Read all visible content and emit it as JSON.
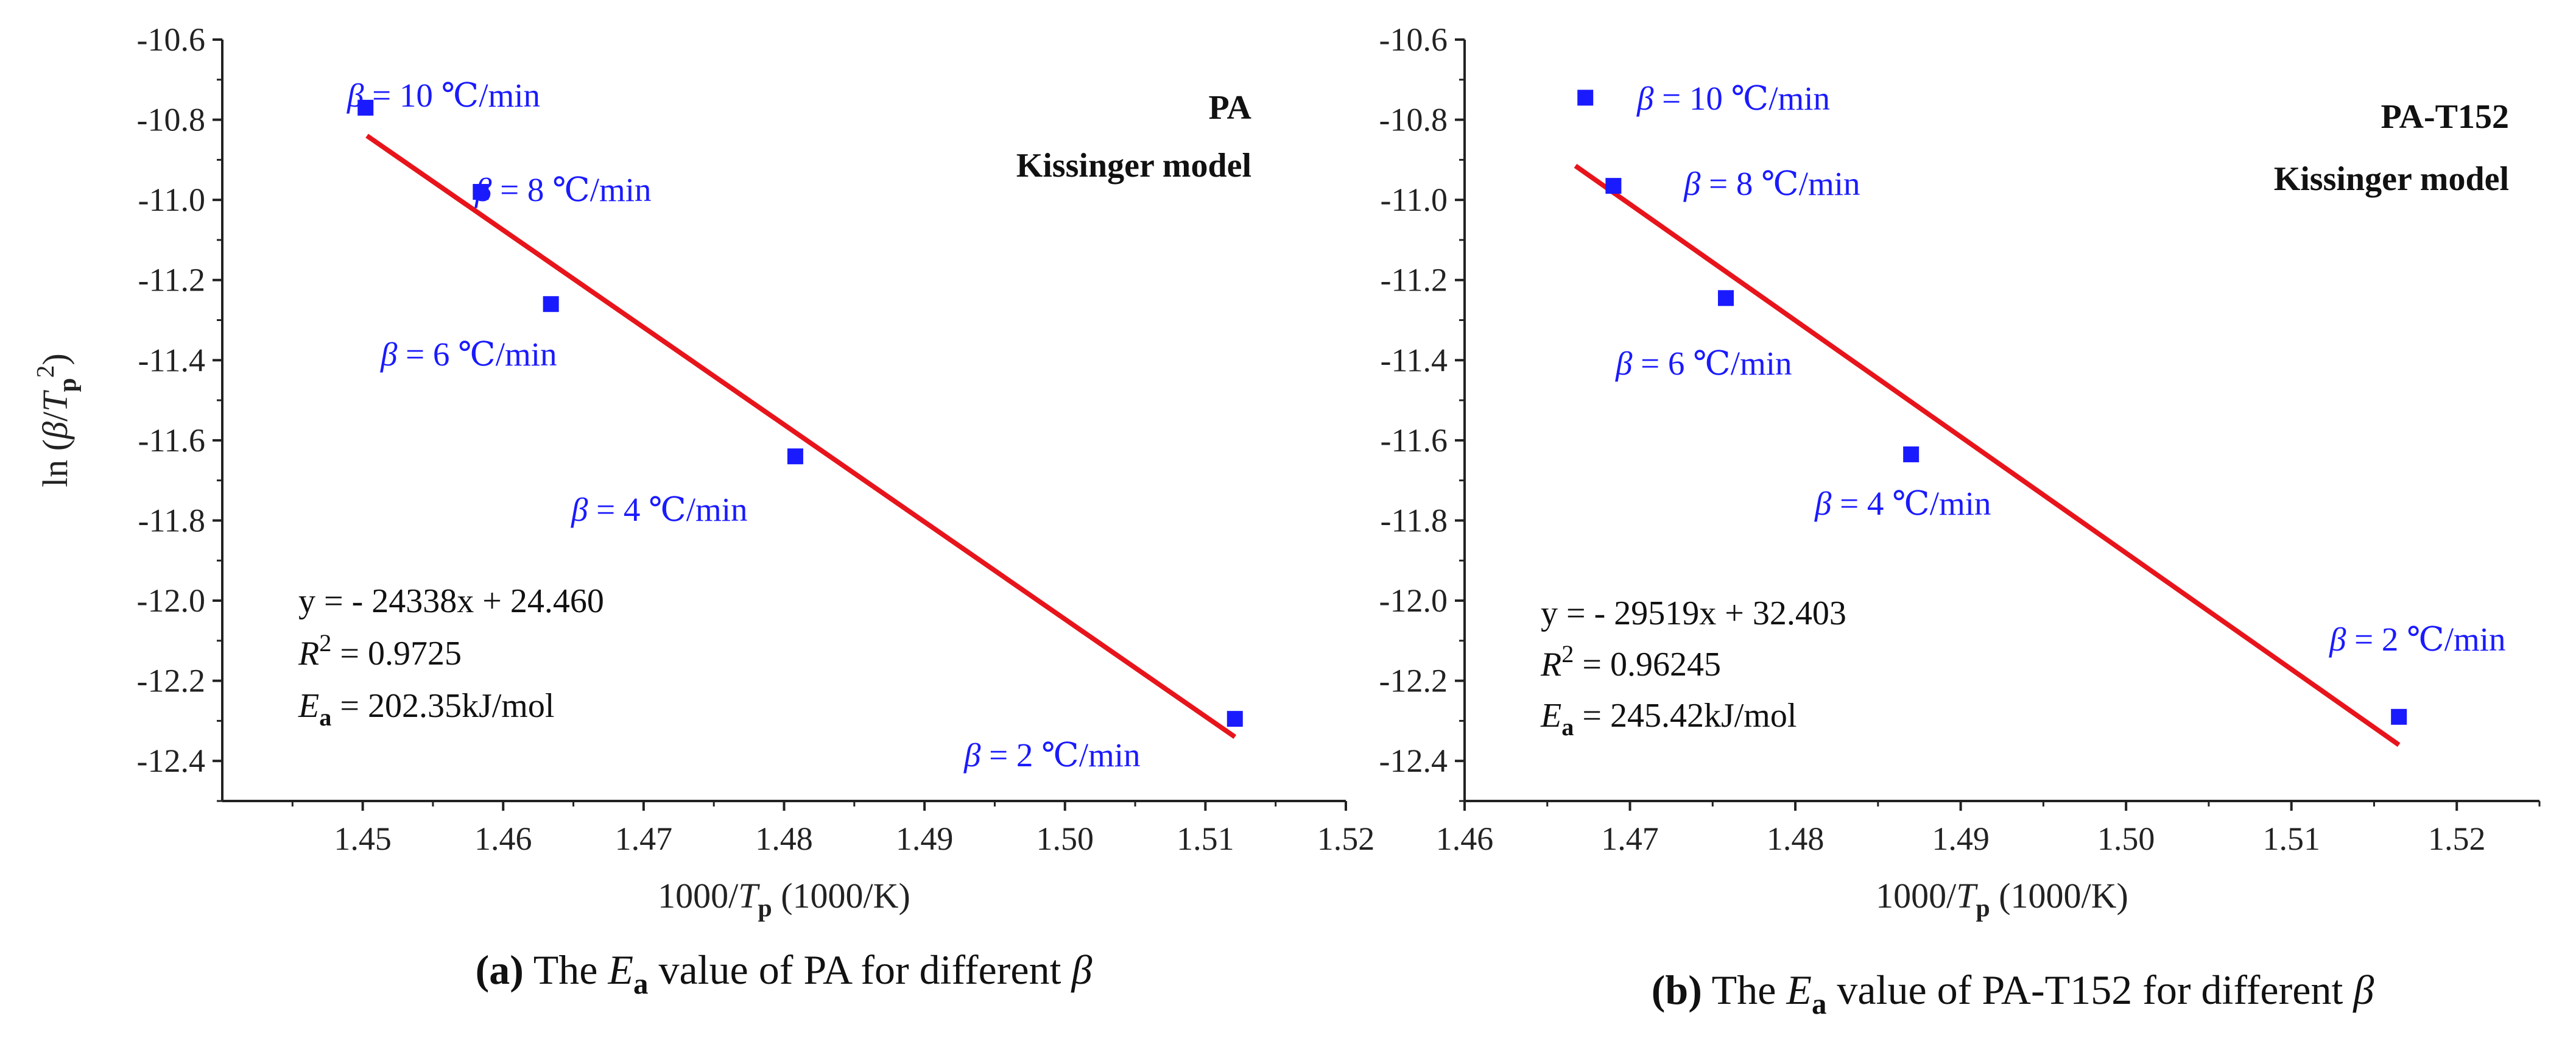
{
  "chart_data": [
    {
      "type": "scatter",
      "panel": "a",
      "caption_prefix": "(a)",
      "caption_text": [
        " The ",
        "E",
        "a",
        " value of PA for different ",
        "β"
      ],
      "title_lines": [
        "PA",
        "Kissinger model"
      ],
      "xlabel": [
        "1000/",
        "T",
        "p",
        " (1000/K)"
      ],
      "ylabel": [
        "ln  (",
        "β",
        "/",
        "T",
        "p",
        "2",
        ")"
      ],
      "xlim": [
        1.44,
        1.52
      ],
      "ylim": [
        -12.5,
        -10.6
      ],
      "xticks": [
        1.45,
        1.46,
        1.47,
        1.48,
        1.49,
        1.5,
        1.51,
        1.52
      ],
      "xtick_labels": [
        "1.45",
        "1.46",
        "1.47",
        "1.48",
        "1.49",
        "1.50",
        "1.51",
        "1.52"
      ],
      "yticks": [
        -10.6,
        -10.8,
        -11.0,
        -11.2,
        -11.4,
        -11.6,
        -11.8,
        -12.0,
        -12.2,
        -12.4
      ],
      "ytick_labels": [
        "-10.6",
        "-10.8",
        "-11.0",
        "-11.2",
        "-11.4",
        "-11.6",
        "-11.8",
        "-12.0",
        "-12.2",
        "-12.4"
      ],
      "points": [
        {
          "x": 1.4502,
          "y": -10.77,
          "beta": "10",
          "label": [
            "β",
            " = 10 ℃/min"
          ],
          "label_anchor": "right-up"
        },
        {
          "x": 1.4584,
          "y": -10.98,
          "beta": "8",
          "label": [
            "β",
            " = 8 ℃/min"
          ],
          "label_anchor": "right"
        },
        {
          "x": 1.4634,
          "y": -11.26,
          "beta": "6",
          "label": [
            "β",
            " = 6 ℃/min"
          ],
          "label_anchor": "below-left"
        },
        {
          "x": 1.4808,
          "y": -11.64,
          "beta": "4",
          "label": [
            "β",
            " = 4 ℃/min"
          ],
          "label_anchor": "below-left"
        },
        {
          "x": 1.5121,
          "y": -12.295,
          "beta": "2",
          "label": [
            "β",
            " = 2 ℃/min"
          ],
          "label_anchor": "below-left"
        }
      ],
      "fit_line": {
        "x": [
          1.4503,
          1.5121
        ],
        "y": [
          -10.84,
          -12.34
        ]
      },
      "equation": [
        "y =  - 24338x + 24.460"
      ],
      "r2": [
        "R",
        "2",
        " = 0.9725"
      ],
      "ea": [
        "E",
        "a",
        " = 202.35kJ/mol"
      ],
      "marker_color": "#1a1aff",
      "line_color": "#e8141b"
    },
    {
      "type": "scatter",
      "panel": "b",
      "caption_prefix": "(b)",
      "caption_text": [
        " The ",
        "E",
        "a",
        " value of PA-T152 for different ",
        "β"
      ],
      "title_lines": [
        "PA-T152",
        "Kissinger model"
      ],
      "xlabel": [
        "1000/",
        "T",
        "p",
        " (1000/K)"
      ],
      "ylabel": [],
      "xlim": [
        1.46,
        1.525
      ],
      "ylim": [
        -12.5,
        -10.6
      ],
      "xticks": [
        1.46,
        1.47,
        1.48,
        1.49,
        1.5,
        1.51,
        1.52
      ],
      "xtick_labels": [
        "1.46",
        "1.47",
        "1.48",
        "1.49",
        "1.50",
        "1.51",
        "1.52"
      ],
      "yticks": [
        -10.6,
        -10.8,
        -11.0,
        -11.2,
        -11.4,
        -11.6,
        -11.8,
        -12.0,
        -12.2,
        -12.4
      ],
      "ytick_labels": [
        "-10.6",
        "-10.8",
        "-11.0",
        "-11.2",
        "-11.4",
        "-11.6",
        "-11.8",
        "-12.0",
        "-12.2",
        "-12.4"
      ],
      "points": [
        {
          "x": 1.4673,
          "y": -10.745,
          "beta": "10",
          "label": [
            "β",
            " = 10 ℃/min"
          ],
          "label_anchor": "right"
        },
        {
          "x": 1.469,
          "y": -10.965,
          "beta": "8",
          "label": [
            "β",
            " = 8 ℃/min"
          ],
          "label_anchor": "right"
        },
        {
          "x": 1.4758,
          "y": -11.245,
          "beta": "6",
          "label": [
            "β",
            " = 6 ℃/min"
          ],
          "label_anchor": "below-left"
        },
        {
          "x": 1.487,
          "y": -11.635,
          "beta": "4",
          "label": [
            "β",
            " = 4 ℃/min"
          ],
          "label_anchor": "below-left"
        },
        {
          "x": 1.5165,
          "y": -12.29,
          "beta": "2",
          "label": [
            "β",
            " = 2 ℃/min"
          ],
          "label_anchor": "above"
        }
      ],
      "fit_line": {
        "x": [
          1.4667,
          1.5165
        ],
        "y": [
          -10.915,
          -12.36
        ]
      },
      "equation": [
        "y =  - 29519x + 32.403"
      ],
      "r2": [
        "R",
        "2",
        " = 0.96245"
      ],
      "ea": [
        "E",
        "a",
        " = 245.42kJ/mol"
      ],
      "marker_color": "#1a1aff",
      "line_color": "#e8141b"
    }
  ]
}
